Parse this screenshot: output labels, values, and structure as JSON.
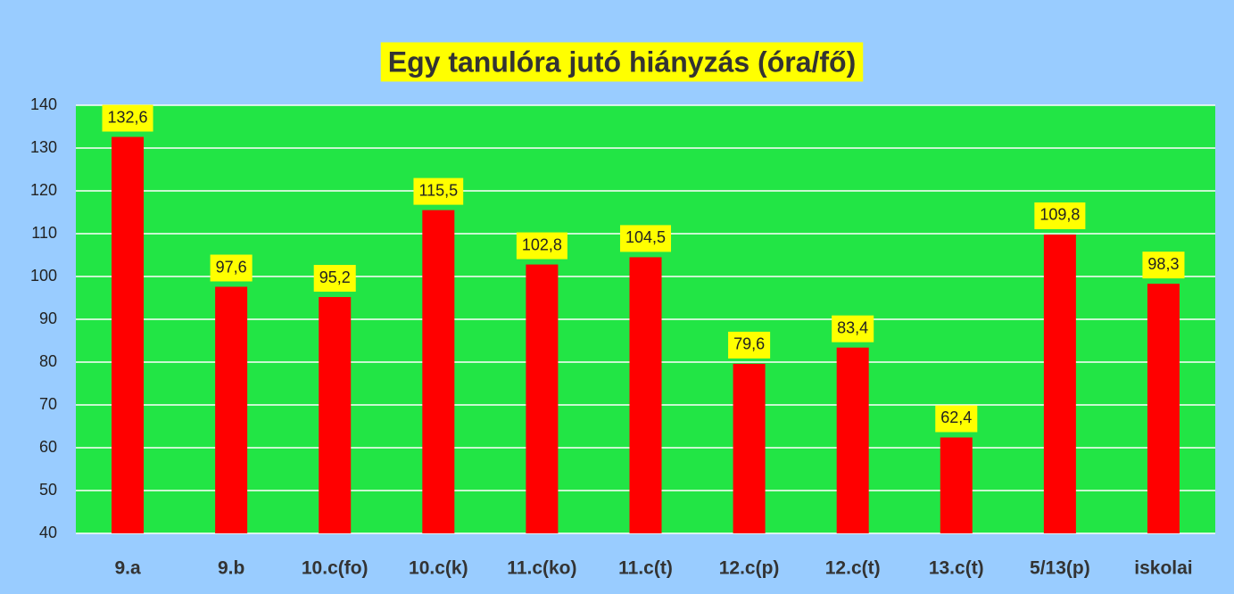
{
  "chart_data": {
    "type": "bar",
    "title": "Egy tanulóra jutó hiányzás (óra/fő)",
    "categories": [
      "9.a",
      "9.b",
      "10.c(fo)",
      "10.c(k)",
      "11.c(ko)",
      "11.c(t)",
      "12.c(p)",
      "12.c(t)",
      "13.c(t)",
      "5/13(p)",
      "iskolai"
    ],
    "values": [
      132.6,
      97.6,
      95.2,
      115.5,
      102.8,
      104.5,
      79.6,
      83.4,
      62.4,
      109.8,
      98.3
    ],
    "value_labels": [
      "132,6",
      "97,6",
      "95,2",
      "115,5",
      "102,8",
      "104,5",
      "79,6",
      "83,4",
      "62,4",
      "109,8",
      "98,3"
    ],
    "color": "#ff0000",
    "ylim": [
      40,
      140
    ],
    "yticks": [
      40,
      50,
      60,
      70,
      80,
      90,
      100,
      110,
      120,
      130,
      140
    ],
    "grid": true
  }
}
